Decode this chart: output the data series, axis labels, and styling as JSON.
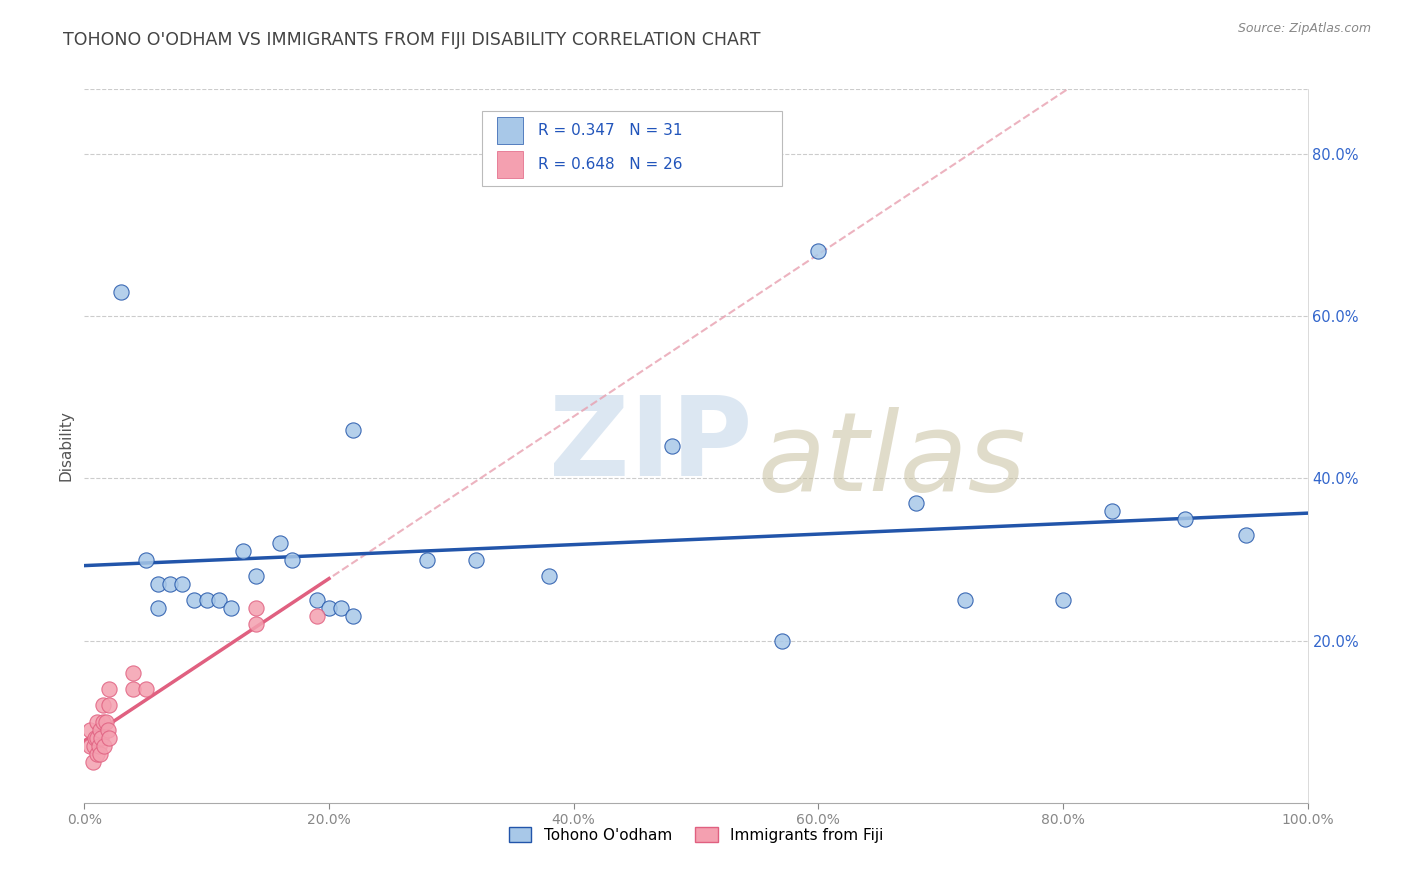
{
  "title": "TOHONO O'ODHAM VS IMMIGRANTS FROM FIJI DISABILITY CORRELATION CHART",
  "source": "Source: ZipAtlas.com",
  "ylabel": "Disability",
  "legend_label1": "Tohono O'odham",
  "legend_label2": "Immigrants from Fiji",
  "xlim": [
    0,
    1.0
  ],
  "ylim": [
    0,
    0.88
  ],
  "xticks": [
    0.0,
    0.2,
    0.4,
    0.6,
    0.8,
    1.0
  ],
  "yticks_right": [
    0.2,
    0.4,
    0.6,
    0.8
  ],
  "color_blue": "#A8C8E8",
  "color_pink": "#F4A0B0",
  "line_blue": "#2255AA",
  "line_pink_solid": "#E06080",
  "line_pink_dashed": "#E8A0B0",
  "background": "#FFFFFF",
  "blue_scatter_x": [
    0.03,
    0.05,
    0.06,
    0.06,
    0.07,
    0.08,
    0.09,
    0.1,
    0.11,
    0.12,
    0.13,
    0.14,
    0.16,
    0.17,
    0.19,
    0.2,
    0.21,
    0.22,
    0.22,
    0.28,
    0.32,
    0.38,
    0.48,
    0.57,
    0.6,
    0.68,
    0.72,
    0.8,
    0.84,
    0.9,
    0.95
  ],
  "blue_scatter_y": [
    0.63,
    0.3,
    0.27,
    0.24,
    0.27,
    0.27,
    0.25,
    0.25,
    0.25,
    0.24,
    0.31,
    0.28,
    0.32,
    0.3,
    0.25,
    0.24,
    0.24,
    0.23,
    0.46,
    0.3,
    0.3,
    0.28,
    0.44,
    0.2,
    0.68,
    0.37,
    0.25,
    0.25,
    0.36,
    0.35,
    0.33
  ],
  "pink_scatter_x": [
    0.005,
    0.005,
    0.007,
    0.008,
    0.009,
    0.01,
    0.01,
    0.01,
    0.012,
    0.013,
    0.013,
    0.014,
    0.015,
    0.015,
    0.016,
    0.018,
    0.019,
    0.02,
    0.02,
    0.02,
    0.04,
    0.04,
    0.05,
    0.14,
    0.14,
    0.19
  ],
  "pink_scatter_y": [
    0.07,
    0.09,
    0.05,
    0.07,
    0.08,
    0.06,
    0.08,
    0.1,
    0.07,
    0.06,
    0.09,
    0.08,
    0.1,
    0.12,
    0.07,
    0.1,
    0.09,
    0.08,
    0.12,
    0.14,
    0.14,
    0.16,
    0.14,
    0.22,
    0.24,
    0.23
  ],
  "grid_color": "#CCCCCC",
  "grid_linestyle": "--",
  "watermark_zip_color": "#C0D4E8",
  "watermark_atlas_color": "#C8C0A0"
}
